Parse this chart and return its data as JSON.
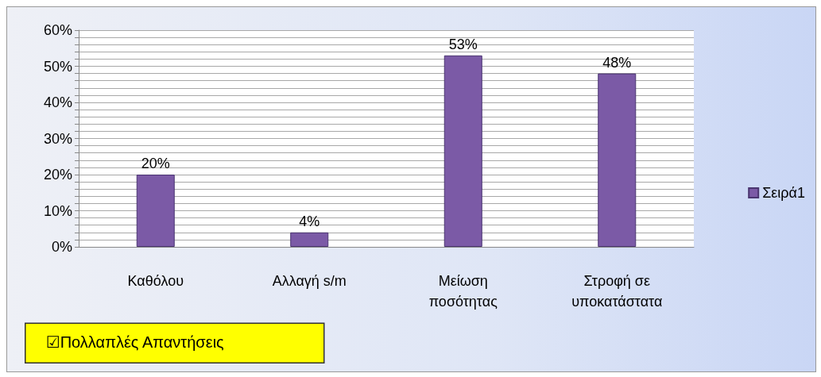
{
  "chart_data": {
    "type": "bar",
    "categories": [
      "Καθόλου",
      "Αλλαγή s/m",
      "Μείωση ποσότητας",
      "Στροφή σε υποκατάστατα"
    ],
    "series": [
      {
        "name": "Σειρά1",
        "color": "#7b5aa6",
        "values": [
          20,
          4,
          53,
          48
        ],
        "value_labels": [
          "20%",
          "4%",
          "53%",
          "48%"
        ]
      }
    ],
    "ylim": [
      0,
      60
    ],
    "yticks": [
      {
        "value": 0,
        "label": "0%"
      },
      {
        "value": 2,
        "label": null
      },
      {
        "value": 4,
        "label": null
      },
      {
        "value": 6,
        "label": null
      },
      {
        "value": 8,
        "label": null
      },
      {
        "value": 10,
        "label": "10%"
      },
      {
        "value": 12,
        "label": null
      },
      {
        "value": 14,
        "label": null
      },
      {
        "value": 16,
        "label": null
      },
      {
        "value": 18,
        "label": null
      },
      {
        "value": 20,
        "label": "20%"
      },
      {
        "value": 22,
        "label": null
      },
      {
        "value": 24,
        "label": null
      },
      {
        "value": 26,
        "label": null
      },
      {
        "value": 28,
        "label": null
      },
      {
        "value": 30,
        "label": "30%"
      },
      {
        "value": 32,
        "label": null
      },
      {
        "value": 34,
        "label": null
      },
      {
        "value": 36,
        "label": null
      },
      {
        "value": 38,
        "label": null
      },
      {
        "value": 40,
        "label": "40%"
      },
      {
        "value": 42,
        "label": null
      },
      {
        "value": 44,
        "label": null
      },
      {
        "value": 46,
        "label": null
      },
      {
        "value": 48,
        "label": null
      },
      {
        "value": 50,
        "label": "50%"
      },
      {
        "value": 52,
        "label": null
      },
      {
        "value": 54,
        "label": null
      },
      {
        "value": 56,
        "label": null
      },
      {
        "value": 58,
        "label": null
      },
      {
        "value": 60,
        "label": "60%"
      }
    ],
    "grid": "y",
    "legend": "right",
    "annotations": [
      "☑Πολλαπλές Απαντήσεις"
    ]
  }
}
